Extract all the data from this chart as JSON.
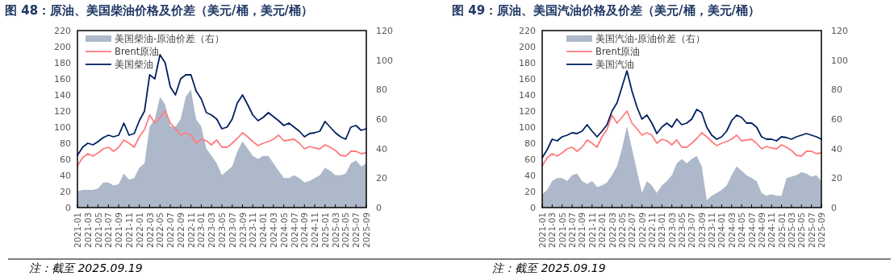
{
  "chart_data": [
    {
      "type": "line",
      "title": "图 48：原油、美国柴油价格及价差（美元/桶，美元/桶）",
      "annotations": [
        "注：截至 2025.09.19"
      ],
      "legend": "top left",
      "grid": false,
      "x": [
        "2021-01",
        "2021-02",
        "2021-03",
        "2021-04",
        "2021-05",
        "2021-06",
        "2021-07",
        "2021-08",
        "2021-09",
        "2021-10",
        "2021-11",
        "2021-12",
        "2022-01",
        "2022-02",
        "2022-03",
        "2022-04",
        "2022-05",
        "2022-06",
        "2022-07",
        "2022-08",
        "2022-09",
        "2022-10",
        "2022-11",
        "2022-12",
        "2023-01",
        "2023-02",
        "2023-03",
        "2023-04",
        "2023-05",
        "2023-06",
        "2023-07",
        "2023-08",
        "2023-09",
        "2023-10",
        "2023-11",
        "2023-12",
        "2024-01",
        "2024-02",
        "2024-03",
        "2024-04",
        "2024-05",
        "2024-06",
        "2024-07",
        "2024-08",
        "2024-09",
        "2024-10",
        "2024-11",
        "2024-12",
        "2025-01",
        "2025-02",
        "2025-03",
        "2025-04",
        "2025-05",
        "2025-06",
        "2025-07",
        "2025-08",
        "2025-09"
      ],
      "xlim": [
        "2021-01",
        "2025-09"
      ],
      "xticks": [
        "2021-01",
        "2021-03",
        "2021-05",
        "2021-07",
        "2021-09",
        "2021-11",
        "2022-01",
        "2022-03",
        "2022-05",
        "2022-07",
        "2022-09",
        "2022-11",
        "2023-01",
        "2023-03",
        "2023-05",
        "2023-07",
        "2023-09",
        "2023-11",
        "2024-01",
        "2024-03",
        "2024-05",
        "2024-07",
        "2024-09",
        "2024-11",
        "2025-01",
        "2025-03",
        "2025-05",
        "2025-07",
        "2025-09"
      ],
      "ylim": [
        0,
        220
      ],
      "yticks": [
        0,
        20,
        40,
        60,
        80,
        100,
        120,
        140,
        160,
        180,
        200,
        220
      ],
      "y2lim": [
        0,
        120
      ],
      "y2ticks": [
        0,
        20,
        40,
        60,
        80,
        100,
        120
      ],
      "series": [
        {
          "name": "美国柴油-原油价差（右）",
          "type": "area",
          "axis": "y2",
          "color": "#adb9ca",
          "values": [
            11,
            12,
            12,
            12,
            13,
            17,
            17,
            15,
            16,
            23,
            19,
            20,
            27,
            30,
            55,
            60,
            75,
            70,
            55,
            55,
            60,
            75,
            80,
            60,
            55,
            40,
            35,
            30,
            22,
            25,
            28,
            38,
            45,
            40,
            35,
            33,
            35,
            35,
            30,
            25,
            20,
            20,
            22,
            20,
            17,
            18,
            20,
            22,
            27,
            25,
            22,
            22,
            23,
            30,
            32,
            28,
            30
          ]
        },
        {
          "name": "Brent原油",
          "color": "#ff7c80",
          "values": [
            52,
            62,
            67,
            64,
            68,
            73,
            75,
            70,
            75,
            84,
            80,
            75,
            88,
            97,
            115,
            105,
            112,
            120,
            105,
            98,
            90,
            93,
            90,
            80,
            85,
            83,
            78,
            84,
            75,
            75,
            80,
            86,
            93,
            88,
            82,
            77,
            80,
            82,
            85,
            90,
            83,
            84,
            85,
            80,
            73,
            76,
            74,
            73,
            78,
            75,
            71,
            65,
            64,
            70,
            70,
            67,
            68
          ]
        },
        {
          "name": "美国柴油",
          "color": "#002060",
          "values": [
            65,
            75,
            80,
            78,
            82,
            87,
            90,
            88,
            90,
            105,
            90,
            92,
            108,
            120,
            165,
            160,
            190,
            180,
            150,
            140,
            160,
            165,
            165,
            145,
            135,
            118,
            115,
            110,
            98,
            100,
            110,
            130,
            140,
            128,
            115,
            108,
            112,
            118,
            113,
            108,
            102,
            105,
            100,
            95,
            88,
            92,
            93,
            95,
            107,
            100,
            93,
            88,
            85,
            100,
            102,
            96,
            98
          ]
        }
      ]
    },
    {
      "type": "line",
      "title": "图 49：原油、美国汽油价格及价差（美元/桶，美元/桶）",
      "annotations": [
        "注：截至 2025.09.19"
      ],
      "legend": "top left",
      "grid": false,
      "x": [
        "2021-01",
        "2021-02",
        "2021-03",
        "2021-04",
        "2021-05",
        "2021-06",
        "2021-07",
        "2021-08",
        "2021-09",
        "2021-10",
        "2021-11",
        "2021-12",
        "2022-01",
        "2022-02",
        "2022-03",
        "2022-04",
        "2022-05",
        "2022-06",
        "2022-07",
        "2022-08",
        "2022-09",
        "2022-10",
        "2022-11",
        "2022-12",
        "2023-01",
        "2023-02",
        "2023-03",
        "2023-04",
        "2023-05",
        "2023-06",
        "2023-07",
        "2023-08",
        "2023-09",
        "2023-10",
        "2023-11",
        "2023-12",
        "2024-01",
        "2024-02",
        "2024-03",
        "2024-04",
        "2024-05",
        "2024-06",
        "2024-07",
        "2024-08",
        "2024-09",
        "2024-10",
        "2024-11",
        "2024-12",
        "2025-01",
        "2025-02",
        "2025-03",
        "2025-04",
        "2025-05",
        "2025-06",
        "2025-07",
        "2025-08",
        "2025-09"
      ],
      "xlim": [
        "2021-01",
        "2025-09"
      ],
      "xticks": [
        "2021-01",
        "2021-03",
        "2021-05",
        "2021-07",
        "2021-09",
        "2021-11",
        "2022-01",
        "2022-03",
        "2022-05",
        "2022-07",
        "2022-09",
        "2022-11",
        "2023-01",
        "2023-03",
        "2023-05",
        "2023-07",
        "2023-09",
        "2023-11",
        "2024-01",
        "2024-03",
        "2024-05",
        "2024-07",
        "2024-09",
        "2024-11",
        "2025-01",
        "2025-03",
        "2025-05",
        "2025-07",
        "2025-09"
      ],
      "ylim": [
        0,
        220
      ],
      "yticks": [
        0,
        20,
        40,
        60,
        80,
        100,
        120,
        140,
        160,
        180,
        200,
        220
      ],
      "y2lim": [
        0,
        120
      ],
      "y2ticks": [
        0,
        20,
        40,
        60,
        80,
        100,
        120
      ],
      "series": [
        {
          "name": "美国汽油-原油价差（右）",
          "type": "area",
          "axis": "y2",
          "color": "#adb9ca",
          "values": [
            9,
            12,
            18,
            20,
            20,
            18,
            22,
            23,
            18,
            16,
            18,
            14,
            15,
            17,
            22,
            28,
            40,
            55,
            40,
            25,
            10,
            18,
            15,
            10,
            15,
            18,
            22,
            30,
            33,
            30,
            33,
            35,
            28,
            5,
            8,
            10,
            12,
            15,
            22,
            28,
            25,
            22,
            20,
            18,
            10,
            8,
            9,
            8,
            8,
            20,
            21,
            22,
            24,
            23,
            21,
            22,
            18
          ]
        },
        {
          "name": "Brent原油",
          "color": "#ff7c80",
          "values": [
            52,
            62,
            67,
            64,
            68,
            73,
            75,
            70,
            75,
            84,
            80,
            75,
            88,
            97,
            115,
            105,
            112,
            120,
            105,
            98,
            90,
            93,
            90,
            80,
            85,
            83,
            78,
            84,
            75,
            75,
            80,
            86,
            93,
            88,
            82,
            77,
            80,
            82,
            85,
            90,
            83,
            84,
            85,
            80,
            73,
            76,
            74,
            73,
            78,
            75,
            71,
            65,
            64,
            70,
            70,
            67,
            68
          ]
        },
        {
          "name": "美国汽油",
          "color": "#002060",
          "values": [
            62,
            72,
            85,
            83,
            88,
            90,
            93,
            92,
            95,
            103,
            95,
            88,
            95,
            103,
            120,
            130,
            150,
            170,
            145,
            125,
            110,
            115,
            105,
            92,
            100,
            105,
            100,
            110,
            103,
            105,
            110,
            122,
            118,
            100,
            90,
            85,
            88,
            95,
            108,
            115,
            112,
            105,
            105,
            100,
            88,
            85,
            85,
            83,
            88,
            87,
            85,
            88,
            90,
            92,
            90,
            88,
            85
          ]
        }
      ]
    }
  ]
}
